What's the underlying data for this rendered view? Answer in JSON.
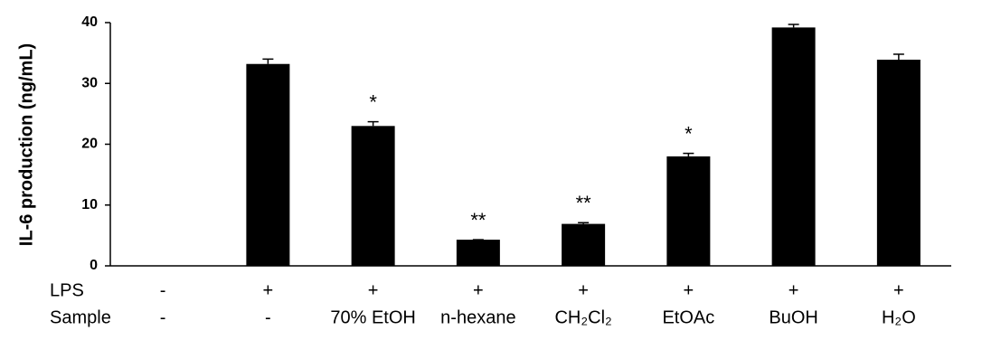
{
  "chart_data": {
    "type": "bar",
    "y_label": "IL-6 production (ng/mL)",
    "categories": [
      "-",
      "-",
      "70% EtOH",
      "n-hexane",
      "CH₂Cl₂",
      "EtOAc",
      "BuOH",
      "H₂O"
    ],
    "category_row_names": [
      "LPS",
      "Sample"
    ],
    "lps": [
      "-",
      "+",
      "+",
      "+",
      "+",
      "+",
      "+",
      "+"
    ],
    "values": [
      null,
      33.2,
      23.0,
      4.3,
      6.9,
      18.0,
      39.2,
      33.9
    ],
    "errors": [
      null,
      0.8,
      0.7,
      0,
      0.2,
      0.5,
      0.5,
      0.9
    ],
    "significance": [
      null,
      null,
      "*",
      "**",
      "**",
      "*",
      null,
      null
    ],
    "color": "#000000",
    "ylim": [
      0,
      40
    ],
    "yticks": [
      0,
      10,
      20,
      30,
      40
    ],
    "grid": false
  }
}
